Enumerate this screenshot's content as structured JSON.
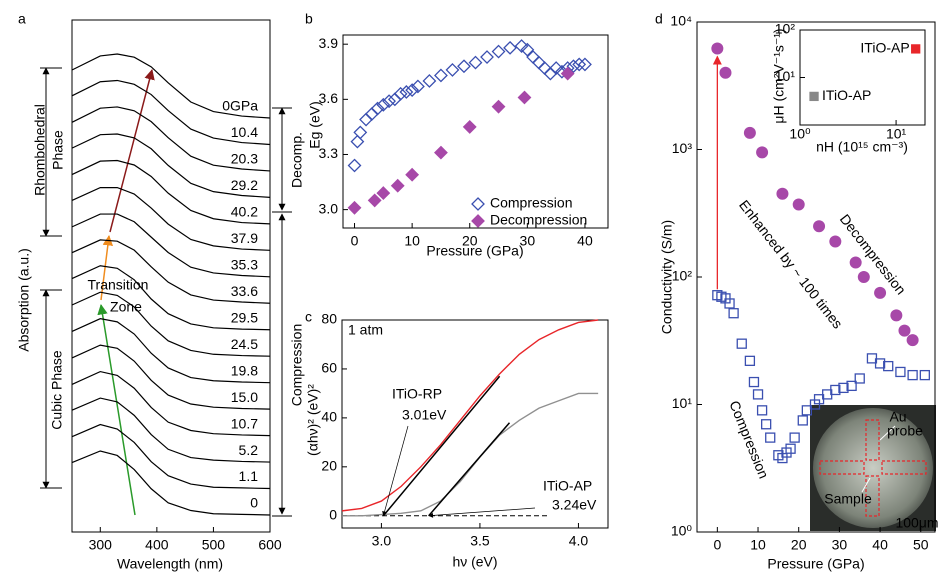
{
  "chart_data": [
    {
      "type": "line",
      "stacked": true,
      "panel_label": "a",
      "xlabel": "Wavelength (nm)",
      "ylabel": "Absorption (a.u.)",
      "xlim": [
        250,
        600
      ],
      "xticks": [
        300,
        400,
        500,
        600
      ],
      "x": [
        250,
        300,
        330,
        360,
        390,
        420,
        460,
        500,
        550,
        600
      ],
      "series": [
        {
          "name": "0GPa",
          "color": "#000000",
          "label_color": "#e0208a",
          "values": [
            0.75,
            0.97,
            1.0,
            0.95,
            0.8,
            0.55,
            0.25,
            0.1,
            0.03,
            0
          ]
        },
        {
          "name": "10.4",
          "color": "#000000",
          "label_color": "#e0208a",
          "values": [
            0.76,
            0.98,
            1.0,
            0.94,
            0.78,
            0.53,
            0.24,
            0.1,
            0.03,
            0
          ]
        },
        {
          "name": "20.3",
          "color": "#000000",
          "label_color": "#e0208a",
          "values": [
            0.76,
            0.98,
            1.0,
            0.94,
            0.77,
            0.52,
            0.23,
            0.09,
            0.03,
            0
          ]
        },
        {
          "name": "29.2",
          "color": "#000000",
          "label_color": "#e0208a",
          "values": [
            0.77,
            0.98,
            0.99,
            0.93,
            0.76,
            0.5,
            0.22,
            0.09,
            0.03,
            0
          ]
        },
        {
          "name": "40.2",
          "color": "#000000",
          "label_color": "#3a4fb0",
          "values": [
            0.77,
            0.98,
            0.99,
            0.92,
            0.74,
            0.48,
            0.21,
            0.08,
            0.02,
            0
          ]
        },
        {
          "name": "37.9",
          "color": "#000000",
          "label_color": "#3a4fb0",
          "values": [
            0.78,
            0.98,
            0.98,
            0.88,
            0.66,
            0.41,
            0.17,
            0.07,
            0.02,
            0
          ]
        },
        {
          "name": "35.3",
          "color": "#000000",
          "label_color": "#3a4fb0",
          "values": [
            0.78,
            0.98,
            0.98,
            0.86,
            0.62,
            0.38,
            0.15,
            0.06,
            0.02,
            0
          ]
        },
        {
          "name": "33.6",
          "color": "#000000",
          "label_color": "#3a4fb0",
          "values": [
            0.79,
            0.99,
            0.97,
            0.83,
            0.57,
            0.33,
            0.13,
            0.05,
            0.02,
            0
          ]
        },
        {
          "name": "29.5",
          "color": "#000000",
          "label_color": "#3a4fb0",
          "values": [
            0.8,
            1.0,
            0.96,
            0.78,
            0.48,
            0.25,
            0.09,
            0.03,
            0.01,
            0
          ]
        },
        {
          "name": "24.5",
          "color": "#000000",
          "label_color": "#3a4fb0",
          "values": [
            0.8,
            1.0,
            0.95,
            0.77,
            0.47,
            0.24,
            0.09,
            0.03,
            0.01,
            0
          ]
        },
        {
          "name": "19.8",
          "color": "#000000",
          "label_color": "#3a4fb0",
          "values": [
            0.8,
            1.0,
            0.95,
            0.76,
            0.46,
            0.23,
            0.08,
            0.03,
            0.01,
            0
          ]
        },
        {
          "name": "15.0",
          "color": "#000000",
          "label_color": "#3a4fb0",
          "values": [
            0.8,
            1.0,
            0.95,
            0.75,
            0.45,
            0.22,
            0.08,
            0.03,
            0.01,
            0
          ]
        },
        {
          "name": "10.7",
          "color": "#000000",
          "label_color": "#3a4fb0",
          "values": [
            0.8,
            1.0,
            0.94,
            0.74,
            0.44,
            0.21,
            0.08,
            0.03,
            0.01,
            0
          ]
        },
        {
          "name": "5.2",
          "color": "#000000",
          "label_color": "#3a4fb0",
          "values": [
            0.81,
            1.0,
            0.94,
            0.73,
            0.43,
            0.2,
            0.07,
            0.03,
            0.01,
            0
          ]
        },
        {
          "name": "1.1",
          "color": "#000000",
          "label_color": "#3a4fb0",
          "values": [
            0.81,
            1.0,
            0.93,
            0.72,
            0.42,
            0.2,
            0.07,
            0.02,
            0.01,
            0
          ]
        },
        {
          "name": "0",
          "color": "#000000",
          "label_color": "#3a4fb0",
          "values": [
            0.82,
            1.0,
            0.93,
            0.71,
            0.41,
            0.19,
            0.07,
            0.02,
            0.01,
            0
          ]
        }
      ],
      "annotations": [
        "Rhombohedral",
        "Phase",
        "Cubic Phase",
        "Transition",
        "Zone",
        "Decomp.",
        "Compression"
      ]
    },
    {
      "type": "scatter",
      "panel_label": "b",
      "xlabel": "Pressure (GPa)",
      "ylabel": "Eg (eV)",
      "xlim": [
        -2,
        44
      ],
      "xticks": [
        0,
        10,
        20,
        30,
        40
      ],
      "ylim": [
        2.9,
        3.95
      ],
      "yticks": [
        {
          "value": 3.0,
          "label": "3.0"
        },
        {
          "value": 3.3,
          "label": "3.3"
        },
        {
          "value": 3.6,
          "label": "3.6"
        },
        {
          "value": 3.9,
          "label": "3.9"
        }
      ],
      "series": [
        {
          "name": "Compression",
          "color": "#3a4fb0",
          "marker": "diamond-open",
          "x": [
            0,
            0.5,
            1,
            2,
            3,
            4,
            5,
            6,
            7,
            8,
            9,
            10,
            11,
            13,
            15,
            17,
            19,
            21,
            23,
            25,
            27,
            29,
            30,
            31,
            32,
            33,
            34,
            35,
            36,
            37,
            38,
            39,
            40
          ],
          "values": [
            3.24,
            3.37,
            3.42,
            3.49,
            3.52,
            3.55,
            3.57,
            3.59,
            3.6,
            3.63,
            3.64,
            3.65,
            3.67,
            3.7,
            3.73,
            3.76,
            3.78,
            3.8,
            3.83,
            3.86,
            3.88,
            3.89,
            3.87,
            3.83,
            3.8,
            3.77,
            3.74,
            3.77,
            3.75,
            3.77,
            3.78,
            3.79,
            3.79
          ]
        },
        {
          "name": "Decompression",
          "color": "#a748a8",
          "marker": "diamond",
          "x": [
            0,
            3.5,
            5,
            7.5,
            10,
            15,
            20,
            25,
            29.5,
            37
          ],
          "values": [
            3.01,
            3.05,
            3.09,
            3.13,
            3.19,
            3.31,
            3.45,
            3.56,
            3.61,
            3.74
          ]
        }
      ],
      "legend": "lower right"
    },
    {
      "type": "line",
      "panel_label": "c",
      "xlabel": "hν (eV)",
      "ylabel": "(αhν)² (eV)²",
      "xlim": [
        2.8,
        4.15
      ],
      "xticks": [
        {
          "value": 3.0,
          "label": "3.0"
        },
        {
          "value": 3.5,
          "label": "3.5"
        },
        {
          "value": 4.0,
          "label": "4.0"
        }
      ],
      "ylim": [
        -5,
        80
      ],
      "yticks": [
        0,
        20,
        40,
        60,
        80
      ],
      "series": [
        {
          "name": "ITiO-RP",
          "color": "#e8262a",
          "x": [
            2.8,
            2.9,
            3.0,
            3.1,
            3.2,
            3.3,
            3.4,
            3.5,
            3.6,
            3.7,
            3.8,
            3.9,
            4.0,
            4.1
          ],
          "values": [
            2,
            3,
            6,
            12,
            20,
            29,
            39,
            49,
            58,
            66,
            72,
            76,
            79,
            80
          ]
        },
        {
          "name": "ITiO-AP",
          "color": "#909090",
          "x": [
            2.8,
            2.9,
            3.0,
            3.1,
            3.2,
            3.3,
            3.4,
            3.5,
            3.6,
            3.7,
            3.8,
            3.9,
            4.0,
            4.1
          ],
          "values": [
            0,
            0,
            0.5,
            1,
            2,
            6,
            14,
            24,
            33,
            39,
            44,
            47,
            50,
            50
          ]
        }
      ],
      "fits": [
        {
          "x": [
            3.01,
            3.6
          ],
          "values": [
            0,
            57
          ],
          "label": "3.01eV"
        },
        {
          "x": [
            3.24,
            3.65
          ],
          "values": [
            0,
            38
          ],
          "label": "3.24eV"
        }
      ],
      "hlines": [
        {
          "y": 0,
          "x": [
            2.8,
            3.85
          ],
          "style": "dashed"
        }
      ],
      "annotations": [
        "1 atm"
      ]
    },
    {
      "type": "scatter",
      "panel_label": "d",
      "xlabel": "Pressure (GPa)",
      "ylabel": "Conductivity (S/m)",
      "xlim": [
        -5,
        53.5
      ],
      "xticks": [
        0,
        10,
        20,
        30,
        40,
        50
      ],
      "ylog": true,
      "ylim": [
        1,
        10000
      ],
      "yticks": [
        {
          "value": 1,
          "label": "10⁰"
        },
        {
          "value": 10,
          "label": "10¹"
        },
        {
          "value": 100,
          "label": "10²"
        },
        {
          "value": 1000,
          "label": "10³"
        },
        {
          "value": 10000,
          "label": "10⁴"
        }
      ],
      "series": [
        {
          "name": "Compression",
          "color": "#3a4fb0",
          "marker": "square-open",
          "x": [
            0,
            1,
            2,
            3,
            4,
            6,
            8,
            9,
            10,
            11,
            12,
            13,
            15,
            16,
            17,
            18,
            19,
            21,
            22,
            24,
            25,
            27,
            29,
            31,
            33,
            35,
            38,
            40,
            42,
            45,
            48,
            51
          ],
          "values": [
            72,
            70,
            68,
            62,
            52,
            30,
            22,
            15,
            12,
            9,
            7,
            5.5,
            4,
            3.8,
            4.2,
            4.5,
            5.5,
            7.5,
            9,
            10,
            11,
            12,
            13,
            13.5,
            14,
            16,
            23,
            21,
            20,
            18,
            17,
            17
          ]
        },
        {
          "name": "Decompression",
          "color": "#a748a8",
          "marker": "circle",
          "x": [
            0,
            2,
            8,
            11,
            16,
            20,
            25,
            29,
            34,
            36,
            40,
            44,
            46,
            48
          ],
          "values": [
            6200,
            4000,
            1350,
            950,
            450,
            370,
            250,
            190,
            130,
            100,
            75,
            50,
            38,
            32
          ]
        }
      ],
      "annotations": [
        "Enhanced by ~ 100 times",
        "Au",
        "probe",
        "Sample",
        "100μm"
      ]
    },
    {
      "type": "scatter",
      "xlabel": "nH (10¹⁵ cm⁻³)",
      "ylabel": "μH (cm²V⁻¹s⁻¹)",
      "xlog": true,
      "ylog": true,
      "xlim": [
        1,
        20
      ],
      "xticks": [
        {
          "value": 1,
          "label": "10⁰"
        },
        {
          "value": 10,
          "label": "10¹"
        }
      ],
      "ylim": [
        1,
        100
      ],
      "yticks": [
        {
          "value": 10,
          "label": "10¹"
        },
        {
          "value": 100,
          "label": "10²"
        }
      ],
      "series": [
        {
          "name": "ITiO-AP",
          "color": "#e8262a",
          "marker": "square",
          "x": [
            16
          ],
          "values": [
            40
          ]
        },
        {
          "name": "ITiO-AP",
          "color": "#888888",
          "marker": "square",
          "x": [
            1.4
          ],
          "values": [
            4
          ]
        }
      ]
    }
  ]
}
